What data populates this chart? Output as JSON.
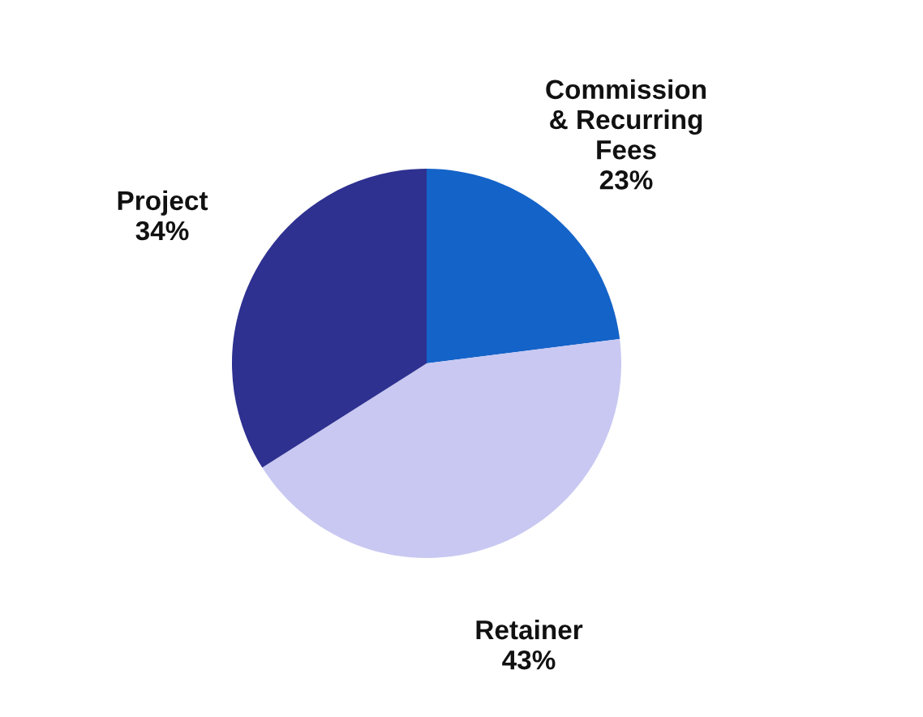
{
  "chart_data": {
    "type": "pie",
    "categories": [
      "Commission\n& Recurring\nFees",
      "Retainer",
      "Project"
    ],
    "values": [
      23,
      43,
      34
    ],
    "colors": [
      "#1463c8",
      "#c8c8f2",
      "#2e3190"
    ],
    "value_labels": [
      "23%",
      "43%",
      "34%"
    ]
  }
}
